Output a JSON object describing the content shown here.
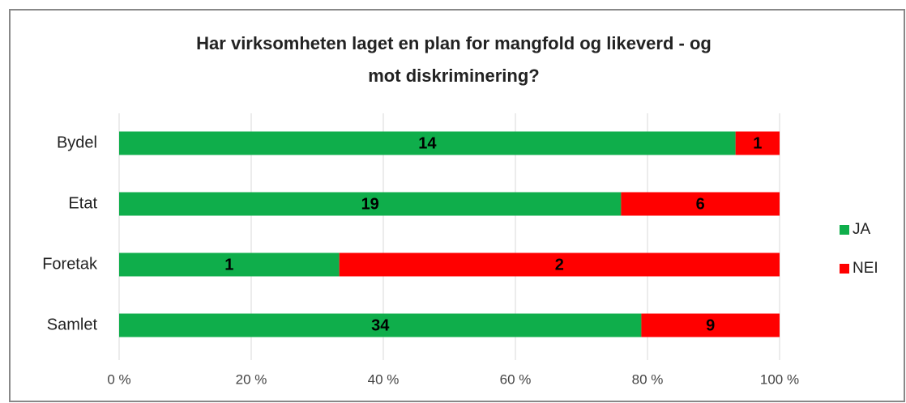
{
  "chart_data": {
    "type": "bar",
    "orientation": "horizontal",
    "stack": "percent",
    "title": [
      "Har virksomheten laget en plan for mangfold og likeverd - og",
      "mot diskriminering?"
    ],
    "categories": [
      "Bydel",
      "Etat",
      "Foretak",
      "Samlet"
    ],
    "series": [
      {
        "name": "JA",
        "color": "#0fae4b",
        "values": [
          14,
          19,
          1,
          34
        ]
      },
      {
        "name": "NEI",
        "color": "#ff0000",
        "values": [
          1,
          6,
          2,
          9
        ]
      }
    ],
    "xlim": [
      0,
      100
    ],
    "xticks": [
      {
        "value": 0,
        "label": "0 %"
      },
      {
        "value": 20,
        "label": "20 %"
      },
      {
        "value": 40,
        "label": "40 %"
      },
      {
        "value": 60,
        "label": "60 %"
      },
      {
        "value": 80,
        "label": "80 %"
      },
      {
        "value": 100,
        "label": "100 %"
      }
    ],
    "grid": true,
    "legend": "right"
  }
}
